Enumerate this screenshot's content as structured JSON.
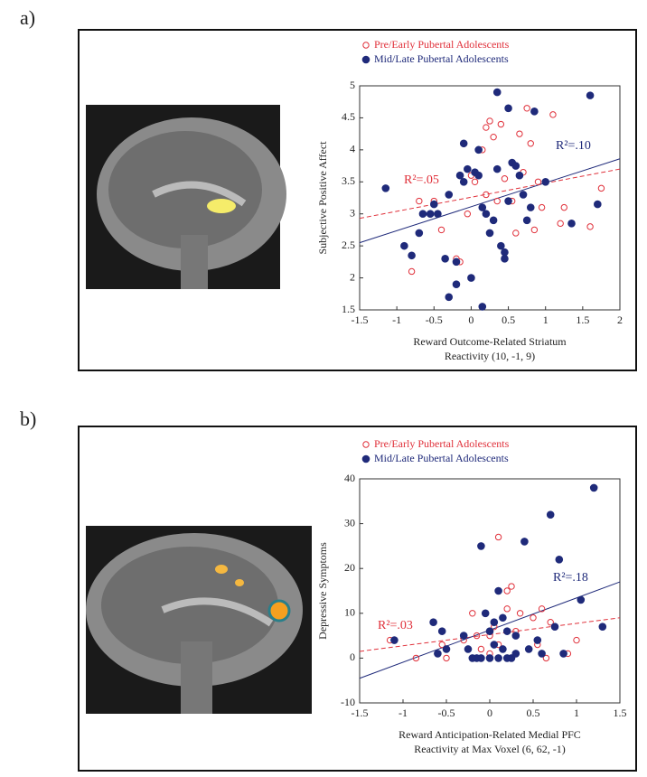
{
  "chart_data": [
    {
      "type": "scatter",
      "panel_label": "a)",
      "x_label": [
        "Reward Outcome-Related Striatum",
        "Reactivity (10, -1, 9)"
      ],
      "y_label": "Subjective Positive Affect",
      "xlim": [
        -1.5,
        2
      ],
      "xticks": [
        -1.5,
        -1,
        -0.5,
        0,
        0.5,
        1,
        1.5,
        2
      ],
      "ylim": [
        1.5,
        5
      ],
      "yticks": [
        1.5,
        2,
        2.5,
        3,
        3.5,
        4,
        4.5,
        5
      ],
      "series": [
        {
          "name": "Pre/Early Pubertal Adolescents",
          "color": "#e0303a",
          "marker": "open",
          "x": [
            -0.8,
            -0.7,
            -0.5,
            -0.45,
            -0.4,
            -0.2,
            -0.15,
            0.0,
            0.05,
            0.15,
            0.2,
            0.25,
            0.3,
            0.35,
            0.4,
            0.45,
            0.55,
            0.6,
            0.65,
            0.7,
            0.75,
            0.8,
            0.85,
            0.9,
            0.95,
            1.1,
            1.2,
            1.25,
            1.6,
            1.75,
            0.2,
            -0.05
          ],
          "values": [
            2.1,
            3.2,
            3.2,
            3.0,
            2.75,
            2.3,
            2.25,
            3.6,
            3.5,
            4.0,
            4.35,
            4.45,
            4.2,
            3.2,
            4.4,
            3.55,
            3.2,
            2.7,
            4.25,
            3.65,
            4.65,
            4.1,
            2.75,
            3.5,
            3.1,
            4.55,
            2.85,
            3.1,
            2.8,
            3.4,
            3.3,
            3.0
          ]
        },
        {
          "name": "Mid/Late Pubertal Adolescents",
          "color": "#1f2a7a",
          "marker": "filled",
          "x": [
            -1.15,
            -0.9,
            -0.8,
            -0.7,
            -0.65,
            -0.55,
            -0.5,
            -0.45,
            -0.35,
            -0.3,
            -0.3,
            -0.2,
            -0.2,
            -0.15,
            -0.1,
            -0.1,
            -0.05,
            0.0,
            0.05,
            0.1,
            0.1,
            0.15,
            0.15,
            0.2,
            0.25,
            0.3,
            0.35,
            0.35,
            0.4,
            0.45,
            0.45,
            0.5,
            0.5,
            0.55,
            0.6,
            0.65,
            0.7,
            0.75,
            0.8,
            0.85,
            1.0,
            1.35,
            1.6,
            1.7
          ],
          "values": [
            3.4,
            2.5,
            2.35,
            2.7,
            3.0,
            3.0,
            3.15,
            3.0,
            2.3,
            1.7,
            3.3,
            1.9,
            2.25,
            3.6,
            3.5,
            4.1,
            3.7,
            2.0,
            3.65,
            3.6,
            4.0,
            1.55,
            3.1,
            3.0,
            2.7,
            2.9,
            4.9,
            3.7,
            2.5,
            2.3,
            2.4,
            4.65,
            3.2,
            3.8,
            3.75,
            3.6,
            3.3,
            2.9,
            3.1,
            4.6,
            3.5,
            2.85,
            4.85,
            3.15
          ]
        }
      ],
      "fit_lines": [
        {
          "color": "#e0303a",
          "dashed": true,
          "x": [
            -1.5,
            2
          ],
          "values": [
            2.93,
            3.7
          ]
        },
        {
          "color": "#1f2a7a",
          "dashed": false,
          "x": [
            -1.5,
            2
          ],
          "values": [
            2.55,
            3.86
          ]
        }
      ],
      "annotations": [
        {
          "text": "R²=.05",
          "color": "#e0303a"
        },
        {
          "text": "R²=.10",
          "color": "#1f2a7a"
        }
      ]
    },
    {
      "type": "scatter",
      "panel_label": "b)",
      "x_label": [
        "Reward Anticipation-Related Medial PFC",
        "Reactivity at Max Voxel (6, 62, -1)"
      ],
      "y_label": "Depressive Symptoms",
      "xlim": [
        -1.5,
        1.5
      ],
      "xticks": [
        -1.5,
        -1,
        -0.5,
        0,
        0.5,
        1,
        1.5
      ],
      "ylim": [
        -10,
        40
      ],
      "yticks": [
        -10,
        0,
        10,
        20,
        30,
        40
      ],
      "series": [
        {
          "name": "Pre/Early Pubertal Adolescents",
          "color": "#e0303a",
          "marker": "open",
          "x": [
            -1.15,
            -0.85,
            -0.55,
            -0.5,
            -0.3,
            -0.2,
            -0.1,
            0.0,
            0.05,
            0.1,
            0.15,
            0.2,
            0.25,
            0.3,
            0.35,
            0.5,
            0.55,
            0.6,
            0.65,
            0.7,
            0.9,
            1.0,
            0.0,
            0.1,
            -0.15,
            0.2
          ],
          "values": [
            4,
            0,
            3,
            0,
            4,
            10,
            2,
            1,
            7,
            27,
            9,
            15,
            16,
            6,
            10,
            9,
            3,
            11,
            0,
            8,
            1,
            4,
            5,
            3,
            5,
            11
          ]
        },
        {
          "name": "Mid/Late Pubertal Adolescents",
          "color": "#1f2a7a",
          "marker": "filled",
          "x": [
            -1.1,
            -0.65,
            -0.6,
            -0.55,
            -0.5,
            -0.3,
            -0.25,
            -0.15,
            -0.1,
            -0.1,
            -0.05,
            0.0,
            0.0,
            0.05,
            0.05,
            0.1,
            0.1,
            0.15,
            0.15,
            0.2,
            0.2,
            0.25,
            0.3,
            0.4,
            0.45,
            0.55,
            0.6,
            0.7,
            0.75,
            0.8,
            0.85,
            1.05,
            1.2,
            1.3,
            -0.2,
            0.3
          ],
          "values": [
            4,
            8,
            1,
            6,
            2,
            5,
            2,
            0,
            25,
            0,
            10,
            0,
            6,
            8,
            3,
            0,
            15,
            9,
            2,
            0,
            6,
            0,
            5,
            26,
            2,
            4,
            1,
            32,
            7,
            22,
            1,
            13,
            38,
            7,
            0,
            1
          ]
        }
      ],
      "fit_lines": [
        {
          "color": "#e0303a",
          "dashed": true,
          "x": [
            -1.5,
            1.5
          ],
          "values": [
            1.5,
            9
          ]
        },
        {
          "color": "#1f2a7a",
          "dashed": false,
          "x": [
            -1.5,
            1.5
          ],
          "values": [
            -4.5,
            17
          ]
        }
      ],
      "annotations": [
        {
          "text": "R²=.03",
          "color": "#e0303a"
        },
        {
          "text": "R²=.18",
          "color": "#1f2a7a"
        }
      ]
    }
  ]
}
